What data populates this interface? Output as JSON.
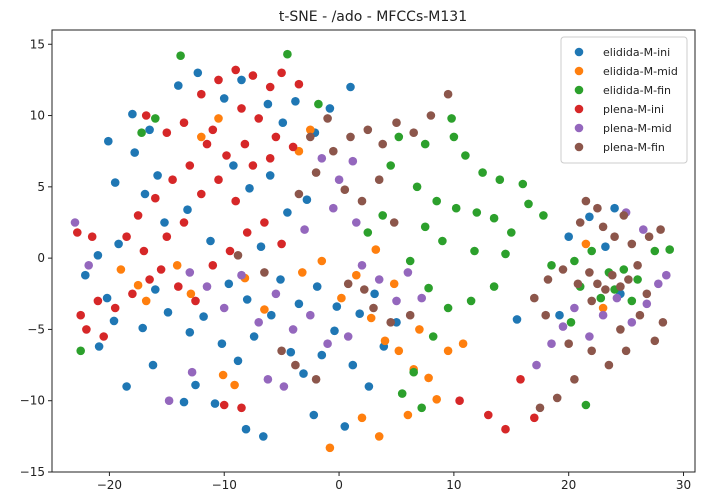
{
  "chart_data": {
    "type": "scatter",
    "title": "t-SNE - /ado - MFCCs-M131",
    "xlabel": "",
    "ylabel": "",
    "xlim": [
      -25,
      31
    ],
    "ylim": [
      -15,
      16
    ],
    "xticks": [
      -20,
      -10,
      0,
      10,
      20,
      30
    ],
    "yticks": [
      -15,
      -10,
      -5,
      0,
      5,
      10,
      15
    ],
    "grid": false,
    "legend_position": "top-right",
    "series": [
      {
        "name": "elidida-M-ini",
        "color": "#1f77b4",
        "points": [
          [
            -20.1,
            8.2
          ],
          [
            -18.0,
            10.1
          ],
          [
            -16.5,
            9.0
          ],
          [
            -17.8,
            7.4
          ],
          [
            -19.5,
            5.3
          ],
          [
            -16.9,
            4.5
          ],
          [
            -15.2,
            2.5
          ],
          [
            -19.2,
            1.0
          ],
          [
            -21.0,
            0.2
          ],
          [
            -22.1,
            -1.2
          ],
          [
            -20.2,
            -2.8
          ],
          [
            -19.6,
            -4.4
          ],
          [
            -17.1,
            -4.9
          ],
          [
            -16.0,
            -2.2
          ],
          [
            -14.9,
            -3.8
          ],
          [
            -13.0,
            -5.2
          ],
          [
            -11.8,
            -4.1
          ],
          [
            -10.2,
            -6.0
          ],
          [
            -8.8,
            -7.2
          ],
          [
            -7.4,
            -5.5
          ],
          [
            -5.9,
            -4.0
          ],
          [
            -4.2,
            -6.6
          ],
          [
            -3.1,
            -8.1
          ],
          [
            -1.5,
            -6.8
          ],
          [
            -0.4,
            -5.1
          ],
          [
            1.2,
            -7.5
          ],
          [
            2.6,
            -9.0
          ],
          [
            3.9,
            -6.2
          ],
          [
            5.0,
            -4.5
          ],
          [
            -12.5,
            -8.9
          ],
          [
            -10.8,
            -10.2
          ],
          [
            -8.1,
            -12.0
          ],
          [
            -6.6,
            -12.5
          ],
          [
            -2.2,
            -11.0
          ],
          [
            0.5,
            -11.8
          ],
          [
            -14.0,
            12.1
          ],
          [
            -12.3,
            13.0
          ],
          [
            -10.0,
            11.2
          ],
          [
            -8.5,
            12.5
          ],
          [
            -6.2,
            10.8
          ],
          [
            -4.9,
            9.5
          ],
          [
            -3.8,
            11.0
          ],
          [
            -2.1,
            8.8
          ],
          [
            -0.8,
            10.5
          ],
          [
            1.0,
            12.0
          ],
          [
            -9.2,
            6.5
          ],
          [
            -7.8,
            4.9
          ],
          [
            -6.0,
            5.8
          ],
          [
            -4.5,
            3.2
          ],
          [
            -2.8,
            4.1
          ],
          [
            -11.2,
            1.2
          ],
          [
            -9.6,
            -1.8
          ],
          [
            -8.0,
            -2.9
          ],
          [
            -6.8,
            0.8
          ],
          [
            -5.1,
            -1.5
          ],
          [
            -3.5,
            -3.2
          ],
          [
            -1.9,
            -2.0
          ],
          [
            -0.2,
            -3.4
          ],
          [
            1.8,
            -3.9
          ],
          [
            3.1,
            -2.5
          ],
          [
            20.0,
            1.5
          ],
          [
            21.8,
            2.9
          ],
          [
            23.2,
            0.8
          ],
          [
            24.5,
            -2.5
          ],
          [
            19.2,
            -4.0
          ],
          [
            15.5,
            -4.3
          ],
          [
            24.0,
            3.5
          ],
          [
            -18.5,
            -9.0
          ],
          [
            -16.2,
            -7.5
          ],
          [
            -13.5,
            -10.1
          ],
          [
            -20.9,
            -6.2
          ],
          [
            -15.8,
            5.8
          ],
          [
            -13.2,
            3.4
          ]
        ]
      },
      {
        "name": "elidida-M-mid",
        "color": "#ff7f0e",
        "points": [
          [
            -12.0,
            8.5
          ],
          [
            -10.5,
            9.8
          ],
          [
            -14.1,
            -0.5
          ],
          [
            -12.9,
            -2.5
          ],
          [
            -10.1,
            -8.2
          ],
          [
            -9.1,
            -8.9
          ],
          [
            -3.2,
            -1.0
          ],
          [
            -1.5,
            -0.2
          ],
          [
            0.2,
            -2.8
          ],
          [
            1.5,
            -1.2
          ],
          [
            2.8,
            -4.2
          ],
          [
            4.0,
            -5.8
          ],
          [
            5.2,
            -6.5
          ],
          [
            6.5,
            -7.8
          ],
          [
            7.8,
            -8.4
          ],
          [
            8.5,
            -9.9
          ],
          [
            6.0,
            -11.0
          ],
          [
            3.5,
            -12.5
          ],
          [
            -0.8,
            -13.3
          ],
          [
            2.0,
            -11.2
          ],
          [
            7.0,
            -5.0
          ],
          [
            9.5,
            -6.5
          ],
          [
            10.8,
            -6.0
          ],
          [
            -8.2,
            -1.4
          ],
          [
            -6.5,
            -3.6
          ],
          [
            4.8,
            -1.8
          ],
          [
            3.2,
            0.6
          ],
          [
            -2.5,
            9.0
          ],
          [
            -3.5,
            7.5
          ],
          [
            21.5,
            1.0
          ],
          [
            23.0,
            -3.5
          ],
          [
            -19.0,
            -0.8
          ],
          [
            -17.5,
            -1.9
          ],
          [
            -16.8,
            -3.0
          ]
        ]
      },
      {
        "name": "elidida-M-fin",
        "color": "#2ca02c",
        "points": [
          [
            -13.8,
            14.2
          ],
          [
            -4.5,
            14.3
          ],
          [
            -1.8,
            10.8
          ],
          [
            4.5,
            6.5
          ],
          [
            6.8,
            5.0
          ],
          [
            8.5,
            4.0
          ],
          [
            10.2,
            3.5
          ],
          [
            12.0,
            3.2
          ],
          [
            13.5,
            2.8
          ],
          [
            15.0,
            1.8
          ],
          [
            16.5,
            3.8
          ],
          [
            17.8,
            3.0
          ],
          [
            14.5,
            0.3
          ],
          [
            11.8,
            0.5
          ],
          [
            9.0,
            1.2
          ],
          [
            7.5,
            2.2
          ],
          [
            6.2,
            -0.2
          ],
          [
            7.8,
            -2.1
          ],
          [
            9.5,
            -3.5
          ],
          [
            8.2,
            -5.5
          ],
          [
            6.5,
            -8.0
          ],
          [
            5.5,
            -9.5
          ],
          [
            7.2,
            -10.5
          ],
          [
            10.0,
            8.5
          ],
          [
            11.0,
            7.2
          ],
          [
            12.5,
            6.0
          ],
          [
            14.0,
            5.5
          ],
          [
            16.0,
            5.2
          ],
          [
            9.8,
            9.8
          ],
          [
            7.5,
            8.0
          ],
          [
            5.2,
            8.5
          ],
          [
            3.8,
            3.0
          ],
          [
            2.5,
            1.8
          ],
          [
            18.5,
            -0.5
          ],
          [
            20.5,
            -0.2
          ],
          [
            22.0,
            0.5
          ],
          [
            23.5,
            -1.0
          ],
          [
            24.8,
            -0.8
          ],
          [
            26.0,
            -1.5
          ],
          [
            27.5,
            0.5
          ],
          [
            28.8,
            0.6
          ],
          [
            21.0,
            -2.0
          ],
          [
            22.8,
            -2.8
          ],
          [
            24.0,
            -2.2
          ],
          [
            25.5,
            -3.0
          ],
          [
            20.2,
            -4.5
          ],
          [
            21.5,
            -10.3
          ],
          [
            -22.5,
            -6.5
          ],
          [
            -17.2,
            8.8
          ],
          [
            -16.0,
            9.8
          ],
          [
            13.5,
            -2.0
          ],
          [
            11.5,
            -3.0
          ]
        ]
      },
      {
        "name": "plena-M-ini",
        "color": "#d62728",
        "points": [
          [
            -16.8,
            10.0
          ],
          [
            -15.0,
            8.8
          ],
          [
            -13.5,
            9.5
          ],
          [
            -12.0,
            11.5
          ],
          [
            -10.5,
            12.5
          ],
          [
            -9.0,
            13.2
          ],
          [
            -7.5,
            12.8
          ],
          [
            -6.0,
            12.0
          ],
          [
            -5.0,
            13.0
          ],
          [
            -3.5,
            12.2
          ],
          [
            -8.5,
            10.5
          ],
          [
            -7.0,
            9.8
          ],
          [
            -5.5,
            8.5
          ],
          [
            -4.0,
            7.8
          ],
          [
            -11.5,
            8.0
          ],
          [
            -13.0,
            6.5
          ],
          [
            -14.5,
            5.5
          ],
          [
            -16.0,
            4.2
          ],
          [
            -17.5,
            3.0
          ],
          [
            -18.5,
            1.5
          ],
          [
            -17.0,
            0.5
          ],
          [
            -15.5,
            -0.8
          ],
          [
            -14.0,
            -2.0
          ],
          [
            -12.5,
            -3.0
          ],
          [
            -11.0,
            -0.5
          ],
          [
            -9.5,
            0.5
          ],
          [
            -8.0,
            1.8
          ],
          [
            -6.5,
            2.5
          ],
          [
            -5.0,
            1.0
          ],
          [
            -12.0,
            4.5
          ],
          [
            -10.5,
            5.5
          ],
          [
            -9.0,
            4.0
          ],
          [
            -7.5,
            6.5
          ],
          [
            -6.0,
            7.0
          ],
          [
            -13.5,
            2.5
          ],
          [
            -15.0,
            1.5
          ],
          [
            -16.5,
            -1.5
          ],
          [
            -18.0,
            -2.5
          ],
          [
            -19.5,
            -3.5
          ],
          [
            -21.0,
            -3.0
          ],
          [
            -22.5,
            -4.0
          ],
          [
            -22.0,
            -5.0
          ],
          [
            -20.5,
            -5.5
          ],
          [
            -22.8,
            1.8
          ],
          [
            -21.5,
            1.5
          ],
          [
            -10.0,
            -10.3
          ],
          [
            -8.5,
            -10.5
          ],
          [
            10.5,
            -10.0
          ],
          [
            13.0,
            -11.0
          ],
          [
            14.5,
            -12.0
          ],
          [
            17.0,
            -11.2
          ],
          [
            15.8,
            -8.5
          ],
          [
            -11.0,
            9.0
          ],
          [
            -9.8,
            7.2
          ],
          [
            -8.2,
            8.0
          ]
        ]
      },
      {
        "name": "plena-M-mid",
        "color": "#9467bd",
        "points": [
          [
            -23.0,
            2.5
          ],
          [
            -21.8,
            -0.5
          ],
          [
            -13.0,
            -1.0
          ],
          [
            -11.5,
            -2.0
          ],
          [
            -10.0,
            -3.5
          ],
          [
            -8.5,
            -1.2
          ],
          [
            -7.0,
            -4.5
          ],
          [
            -5.5,
            -2.5
          ],
          [
            -4.0,
            -5.0
          ],
          [
            -2.5,
            -4.0
          ],
          [
            -1.0,
            -6.0
          ],
          [
            0.8,
            -5.5
          ],
          [
            2.0,
            -0.5
          ],
          [
            3.5,
            -1.5
          ],
          [
            5.0,
            -3.0
          ],
          [
            6.0,
            -1.0
          ],
          [
            7.2,
            -2.8
          ],
          [
            -1.5,
            7.0
          ],
          [
            0.0,
            5.5
          ],
          [
            1.2,
            6.8
          ],
          [
            -0.5,
            3.5
          ],
          [
            1.5,
            2.5
          ],
          [
            -3.0,
            2.0
          ],
          [
            -6.2,
            -8.5
          ],
          [
            -4.8,
            -9.0
          ],
          [
            17.2,
            -7.5
          ],
          [
            18.5,
            -6.0
          ],
          [
            19.5,
            -4.8
          ],
          [
            20.5,
            -3.5
          ],
          [
            21.8,
            -5.5
          ],
          [
            23.0,
            -4.0
          ],
          [
            24.2,
            -2.8
          ],
          [
            25.5,
            -4.5
          ],
          [
            26.8,
            -3.2
          ],
          [
            27.8,
            -1.8
          ],
          [
            25.0,
            3.2
          ],
          [
            26.5,
            2.0
          ],
          [
            28.5,
            -1.2
          ],
          [
            -14.8,
            -10.0
          ],
          [
            -12.8,
            -8.0
          ]
        ]
      },
      {
        "name": "plena-M-fin",
        "color": "#8c564b",
        "points": [
          [
            -8.8,
            0.2
          ],
          [
            -6.5,
            -1.0
          ],
          [
            -3.5,
            4.5
          ],
          [
            -2.0,
            6.0
          ],
          [
            -0.5,
            7.5
          ],
          [
            1.0,
            8.5
          ],
          [
            2.5,
            9.0
          ],
          [
            3.8,
            8.0
          ],
          [
            5.0,
            9.5
          ],
          [
            6.5,
            8.8
          ],
          [
            8.0,
            10.0
          ],
          [
            9.5,
            11.5
          ],
          [
            -2.5,
            8.5
          ],
          [
            -1.0,
            9.8
          ],
          [
            0.5,
            4.8
          ],
          [
            2.0,
            4.0
          ],
          [
            3.5,
            5.5
          ],
          [
            4.8,
            2.5
          ],
          [
            3.0,
            -3.5
          ],
          [
            4.5,
            -4.5
          ],
          [
            6.2,
            -4.0
          ],
          [
            2.2,
            -2.2
          ],
          [
            0.8,
            -1.8
          ],
          [
            -5.0,
            -6.5
          ],
          [
            -3.8,
            -7.5
          ],
          [
            -2.0,
            -8.5
          ],
          [
            17.0,
            -2.8
          ],
          [
            18.2,
            -1.5
          ],
          [
            19.5,
            -0.8
          ],
          [
            20.8,
            -1.8
          ],
          [
            21.8,
            -1.0
          ],
          [
            22.5,
            -1.8
          ],
          [
            23.2,
            -2.2
          ],
          [
            23.8,
            -1.2
          ],
          [
            24.5,
            -2.0
          ],
          [
            25.2,
            -1.5
          ],
          [
            26.0,
            -0.5
          ],
          [
            26.8,
            -2.5
          ],
          [
            22.0,
            -3.0
          ],
          [
            21.0,
            2.5
          ],
          [
            22.5,
            3.5
          ],
          [
            24.0,
            1.5
          ],
          [
            25.5,
            1.0
          ],
          [
            27.0,
            1.5
          ],
          [
            28.0,
            2.0
          ],
          [
            22.0,
            -6.5
          ],
          [
            23.5,
            -7.5
          ],
          [
            20.5,
            -8.5
          ],
          [
            19.0,
            -9.8
          ],
          [
            17.5,
            -10.5
          ],
          [
            25.0,
            -6.5
          ],
          [
            27.5,
            -5.8
          ],
          [
            28.2,
            -4.5
          ],
          [
            24.5,
            -5.0
          ],
          [
            20.0,
            -6.0
          ],
          [
            18.0,
            -4.0
          ],
          [
            21.5,
            4.0
          ],
          [
            23.0,
            2.2
          ],
          [
            24.8,
            3.0
          ],
          [
            26.2,
            -4.0
          ]
        ]
      }
    ]
  }
}
